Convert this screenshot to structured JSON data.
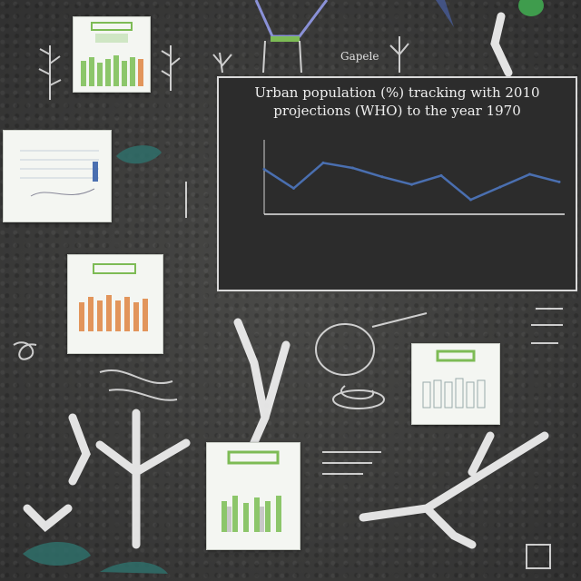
{
  "chart_data": {
    "type": "line",
    "title": "Urban population (%) tracking with 2010 projections (WHO) to the year 1970",
    "xlabel": "",
    "ylabel": "",
    "ylim": [
      0,
      100
    ],
    "categories": [
      "",
      "",
      "",
      "",
      "",
      "",
      "",
      "",
      "",
      "",
      ""
    ],
    "series": [
      {
        "values": [
          68,
          38,
          78,
          70,
          56,
          44,
          58,
          20,
          40,
          60,
          48
        ]
      }
    ],
    "grid": false,
    "line_color": "#4a6fb0"
  },
  "board": {
    "side_note": "Gapele"
  },
  "colors": {
    "accent_green": "#7dbb55",
    "bar_orange": "#e2955b",
    "chalk_white": "#f2f2f2"
  }
}
